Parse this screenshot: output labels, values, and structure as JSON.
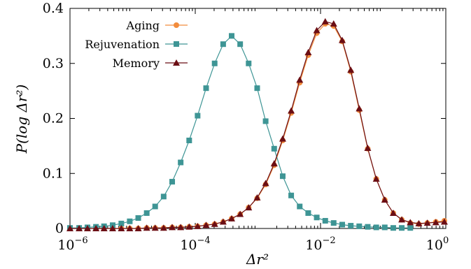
{
  "chart_data": {
    "type": "line",
    "title": "",
    "xlabel": "Δr²",
    "ylabel": "P(log Δr²)",
    "xscale": "log",
    "xlim": [
      1e-06,
      1
    ],
    "ylim": [
      0,
      0.4
    ],
    "grid": false,
    "legend_position": "top-left",
    "x_ticks": [
      {
        "mantissa": "10",
        "exponent": "−6"
      },
      {
        "mantissa": "10",
        "exponent": "−4"
      },
      {
        "mantissa": "10",
        "exponent": "−2"
      },
      {
        "mantissa": "10",
        "exponent": "0"
      }
    ],
    "y_ticks": [
      "0",
      "0.1",
      "0.2",
      "0.3",
      "0.4"
    ],
    "series": [
      {
        "name": "Aging",
        "color": "#f28c3c",
        "marker": "circle",
        "x": [
          1e-06,
          1.4e-06,
          1.9e-06,
          2.6e-06,
          3.5e-06,
          4.8e-06,
          6.6e-06,
          9e-06,
          1.23e-05,
          1.68e-05,
          2.29e-05,
          3.13e-05,
          4.28e-05,
          5.85e-05,
          8e-05,
          0.000109,
          0.000149,
          0.000204,
          0.000279,
          0.000381,
          0.000521,
          0.000712,
          0.000974,
          0.00133,
          0.00182,
          0.00249,
          0.0034,
          0.00465,
          0.00636,
          0.0087,
          0.0119,
          0.0162,
          0.0222,
          0.0304,
          0.0415,
          0.0567,
          0.0776,
          0.106,
          0.145,
          0.198,
          0.271,
          0.371,
          0.507,
          0.693,
          0.948
        ],
        "y": [
          0,
          0,
          0,
          0,
          0,
          0,
          0,
          0,
          0,
          0.001,
          0.001,
          0.001,
          0.002,
          0.002,
          0.003,
          0.004,
          0.006,
          0.008,
          0.012,
          0.018,
          0.026,
          0.038,
          0.055,
          0.08,
          0.115,
          0.16,
          0.21,
          0.265,
          0.315,
          0.355,
          0.372,
          0.368,
          0.34,
          0.285,
          0.215,
          0.145,
          0.09,
          0.052,
          0.028,
          0.016,
          0.01,
          0.008,
          0.01,
          0.012,
          0.014
        ]
      },
      {
        "name": "Rejuvenation",
        "color": "#3e9595",
        "marker": "square",
        "x": [
          1e-06,
          1.4e-06,
          1.9e-06,
          2.6e-06,
          3.5e-06,
          4.8e-06,
          6.6e-06,
          9e-06,
          1.23e-05,
          1.68e-05,
          2.29e-05,
          3.13e-05,
          4.28e-05,
          5.85e-05,
          8e-05,
          0.000109,
          0.000149,
          0.000204,
          0.000279,
          0.000381,
          0.000521,
          0.000712,
          0.000974,
          0.00133,
          0.00182,
          0.00249,
          0.0034,
          0.00465,
          0.00636,
          0.0087,
          0.0119,
          0.0162,
          0.0222,
          0.0304,
          0.0415,
          0.0567,
          0.0776,
          0.106,
          0.145,
          0.198,
          0.271
        ],
        "y": [
          0.001,
          0.001,
          0.002,
          0.003,
          0.004,
          0.006,
          0.009,
          0.013,
          0.019,
          0.028,
          0.04,
          0.058,
          0.085,
          0.12,
          0.16,
          0.205,
          0.255,
          0.3,
          0.335,
          0.35,
          0.335,
          0.3,
          0.255,
          0.195,
          0.145,
          0.095,
          0.06,
          0.04,
          0.028,
          0.02,
          0.014,
          0.01,
          0.007,
          0.005,
          0.004,
          0.003,
          0.002,
          0.002,
          0.001,
          0.001,
          0.001
        ]
      },
      {
        "name": "Memory",
        "color": "#6b0e14",
        "marker": "triangle",
        "x": [
          1e-06,
          1.4e-06,
          1.9e-06,
          2.6e-06,
          3.5e-06,
          4.8e-06,
          6.6e-06,
          9e-06,
          1.23e-05,
          1.68e-05,
          2.29e-05,
          3.13e-05,
          4.28e-05,
          5.85e-05,
          8e-05,
          0.000109,
          0.000149,
          0.000204,
          0.000279,
          0.000381,
          0.000521,
          0.000712,
          0.000974,
          0.00133,
          0.00182,
          0.00249,
          0.0034,
          0.00465,
          0.00636,
          0.0087,
          0.0119,
          0.0162,
          0.0222,
          0.0304,
          0.0415,
          0.0567,
          0.0776,
          0.106,
          0.145,
          0.198,
          0.271,
          0.371,
          0.507,
          0.693,
          0.948
        ],
        "y": [
          0,
          0,
          0,
          0,
          0,
          0,
          0,
          0,
          0,
          0.001,
          0.001,
          0.001,
          0.002,
          0.002,
          0.003,
          0.004,
          0.006,
          0.008,
          0.012,
          0.018,
          0.026,
          0.038,
          0.056,
          0.082,
          0.118,
          0.163,
          0.214,
          0.27,
          0.32,
          0.36,
          0.376,
          0.372,
          0.342,
          0.288,
          0.218,
          0.146,
          0.09,
          0.052,
          0.028,
          0.016,
          0.011,
          0.009,
          0.01,
          0.011,
          0.012
        ]
      }
    ]
  }
}
